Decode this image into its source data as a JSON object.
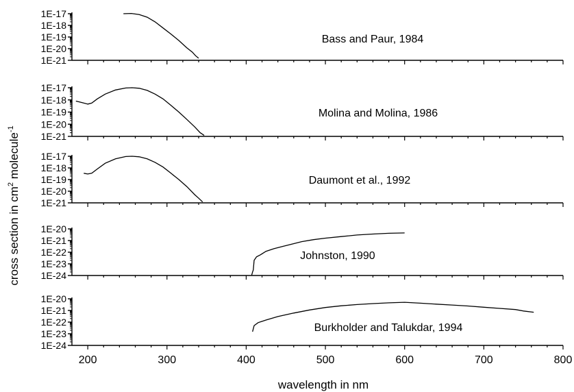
{
  "figure": {
    "ylabel_main": "cross section in cm",
    "ylabel_sup1": "2",
    "ylabel_mid": " molecule",
    "ylabel_sup2": "-1",
    "xlabel": "wavelength in nm"
  },
  "chart_data": [
    {
      "type": "line",
      "title": "Bass and Paur, 1984",
      "y_scale": "log",
      "ylim": [
        1e-21,
        1e-17
      ],
      "y_tick_labels": [
        "1E-17",
        "1E-18",
        "1E-19",
        "1E-20",
        "1E-21"
      ],
      "xlim": [
        180,
        800
      ],
      "series": [
        {
          "x": [
            245,
            255,
            265,
            275,
            285,
            295,
            305,
            315,
            325,
            332,
            336,
            340
          ],
          "y": [
            1e-17,
            1.05e-17,
            8.5e-18,
            5e-18,
            2e-18,
            6e-19,
            1.8e-19,
            5e-20,
            1.2e-20,
            5e-21,
            2.5e-21,
            1.5e-21
          ]
        }
      ]
    },
    {
      "type": "line",
      "title": "Molina and Molina, 1986",
      "y_scale": "log",
      "ylim": [
        1e-21,
        1e-17
      ],
      "y_tick_labels": [
        "1E-17",
        "1E-18",
        "1E-19",
        "1E-20",
        "1E-21"
      ],
      "xlim": [
        180,
        800
      ],
      "series": [
        {
          "x": [
            185,
            193,
            200,
            205,
            212,
            222,
            235,
            248,
            256,
            265,
            275,
            285,
            295,
            305,
            315,
            325,
            335,
            342,
            347
          ],
          "y": [
            8e-19,
            6e-19,
            4.5e-19,
            5.5e-19,
            1.2e-18,
            3e-18,
            6.5e-18,
            9.5e-18,
            1e-17,
            9e-18,
            6e-18,
            3e-18,
            1.2e-18,
            3.5e-19,
            1e-19,
            2.5e-20,
            6e-21,
            2e-21,
            1.2e-21
          ]
        }
      ]
    },
    {
      "type": "line",
      "title": "Daumont et al., 1992",
      "y_scale": "log",
      "ylim": [
        1e-21,
        1e-17
      ],
      "y_tick_labels": [
        "1E-17",
        "1E-18",
        "1E-19",
        "1E-20",
        "1E-21"
      ],
      "xlim": [
        180,
        800
      ],
      "series": [
        {
          "x": [
            195,
            200,
            205,
            212,
            222,
            235,
            248,
            256,
            265,
            275,
            285,
            295,
            305,
            315,
            325,
            335,
            340,
            345
          ],
          "y": [
            3.5e-19,
            3e-19,
            3.5e-19,
            8e-19,
            2.5e-18,
            6e-18,
            9.5e-18,
            1e-17,
            9e-18,
            6e-18,
            3e-18,
            1.2e-18,
            3.5e-19,
            1e-19,
            2.5e-20,
            5e-21,
            2.5e-21,
            1.2e-21
          ]
        }
      ]
    },
    {
      "type": "line",
      "title": "Johnston, 1990",
      "y_scale": "log",
      "ylim": [
        1e-24,
        1e-20
      ],
      "y_tick_labels": [
        "1E-20",
        "1E-21",
        "1E-22",
        "1E-23",
        "1E-24"
      ],
      "xlim": [
        180,
        800
      ],
      "series": [
        {
          "x": [
            407,
            408,
            409,
            410,
            413,
            418,
            425,
            435,
            445,
            458,
            470,
            485,
            500,
            520,
            540,
            560,
            580,
            600
          ],
          "y": [
            1.1e-24,
            2e-24,
            3e-24,
            2e-23,
            4e-23,
            6e-23,
            1.2e-22,
            2e-22,
            3e-22,
            5e-22,
            8e-22,
            1.2e-21,
            1.6e-21,
            2.2e-21,
            3e-21,
            3.6e-21,
            4.2e-21,
            4.5e-21
          ]
        }
      ]
    },
    {
      "type": "line",
      "title": "Burkholder and Talukdar, 1994",
      "y_scale": "log",
      "ylim": [
        1e-24,
        1e-20
      ],
      "y_tick_labels": [
        "1E-20",
        "1E-21",
        "1E-22",
        "1E-23",
        "1E-24"
      ],
      "xlim": [
        180,
        800
      ],
      "x_tick_labels": [
        "200",
        "300",
        "400",
        "500",
        "600",
        "700",
        "800"
      ],
      "series": [
        {
          "x": [
            408,
            410,
            415,
            425,
            440,
            460,
            480,
            500,
            520,
            540,
            560,
            580,
            600,
            620,
            640,
            660,
            680,
            700,
            720,
            740,
            750,
            763
          ],
          "y": [
            1.5e-23,
            5e-23,
            9e-23,
            1.5e-22,
            3e-22,
            6e-22,
            1.1e-21,
            1.8e-21,
            2.5e-21,
            3.2e-21,
            3.9e-21,
            4.5e-21,
            5e-21,
            4.2e-21,
            3.5e-21,
            2.9e-21,
            2.4e-21,
            1.9e-21,
            1.5e-21,
            1.2e-21,
            9e-22,
            7e-22
          ]
        }
      ]
    }
  ]
}
